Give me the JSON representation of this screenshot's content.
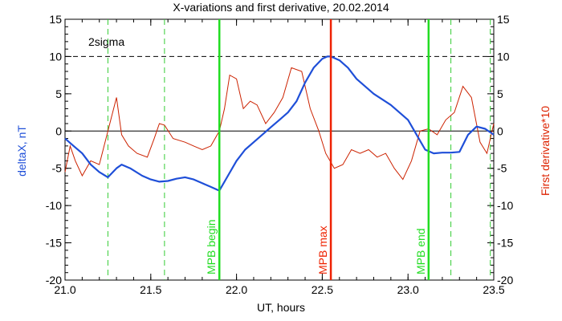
{
  "chart_data": {
    "type": "line",
    "title": "X-variations and first derivative, 20.02.2014",
    "xlabel": "UT, hours",
    "ylabel_left": "deltaX, nT",
    "ylabel_right": "First derivative*10",
    "xlim": [
      21.0,
      23.5
    ],
    "ylim_left": [
      -20,
      15
    ],
    "ylim_right": [
      -20,
      15
    ],
    "x_ticks": [
      "21.0",
      "21.5",
      "22.0",
      "22.5",
      "23.0",
      "23.5"
    ],
    "y_ticks": [
      "-20",
      "-15",
      "-10",
      "-5",
      "0",
      "5",
      "10",
      "15"
    ],
    "two_sigma_label": "2sigma",
    "two_sigma_level": 10,
    "zero_level": 0,
    "colors": {
      "deltaX": "#1f4fd8",
      "derivative": "#cc2200",
      "mpb_marker": "#22dd22",
      "max_marker": "#ee2200",
      "reference": "#000000",
      "dashed": "#33cc33"
    },
    "series": [
      {
        "name": "deltaX, nT",
        "axis": "left",
        "x": [
          21.0,
          21.05,
          21.1,
          21.15,
          21.2,
          21.25,
          21.3,
          21.33,
          21.38,
          21.45,
          21.5,
          21.55,
          21.6,
          21.65,
          21.7,
          21.75,
          21.8,
          21.85,
          21.9,
          21.95,
          22.0,
          22.05,
          22.1,
          22.15,
          22.2,
          22.25,
          22.3,
          22.35,
          22.4,
          22.45,
          22.5,
          22.53,
          22.55,
          22.6,
          22.65,
          22.7,
          22.8,
          22.9,
          23.0,
          23.05,
          23.1,
          23.15,
          23.2,
          23.25,
          23.3,
          23.35,
          23.4,
          23.45,
          23.5
        ],
        "y": [
          -1.0,
          -2.0,
          -3.0,
          -4.5,
          -5.5,
          -6.2,
          -5.0,
          -4.5,
          -5.0,
          -6.0,
          -6.5,
          -6.8,
          -6.7,
          -6.4,
          -6.2,
          -6.5,
          -7.0,
          -7.5,
          -8.0,
          -6.0,
          -4.0,
          -2.5,
          -1.5,
          -0.5,
          0.5,
          1.5,
          2.5,
          4.0,
          6.5,
          8.5,
          9.7,
          10.0,
          10.0,
          9.5,
          8.5,
          7.0,
          5.0,
          3.5,
          1.5,
          -0.5,
          -2.5,
          -3.0,
          -2.9,
          -2.9,
          -2.8,
          -0.5,
          0.6,
          0.3,
          -0.5
        ]
      },
      {
        "name": "First derivative*10",
        "axis": "right",
        "x": [
          21.0,
          21.03,
          21.06,
          21.1,
          21.15,
          21.2,
          21.25,
          21.3,
          21.33,
          21.37,
          21.42,
          21.48,
          21.52,
          21.55,
          21.58,
          21.63,
          21.7,
          21.75,
          21.8,
          21.85,
          21.9,
          21.93,
          21.96,
          22.0,
          22.04,
          22.08,
          22.12,
          22.17,
          22.22,
          22.27,
          22.32,
          22.38,
          22.43,
          22.48,
          22.52,
          22.57,
          22.62,
          22.67,
          22.72,
          22.77,
          22.82,
          22.87,
          22.92,
          22.97,
          23.02,
          23.07,
          23.12,
          23.17,
          23.22,
          23.27,
          23.32,
          23.37,
          23.42,
          23.46,
          23.5
        ],
        "y": [
          -5.5,
          -2.0,
          -4.0,
          -6.0,
          -4.0,
          -4.5,
          0.0,
          4.5,
          -0.5,
          -2.0,
          -3.0,
          -3.5,
          -1.0,
          1.0,
          0.8,
          -1.0,
          -1.5,
          -2.0,
          -2.5,
          -2.0,
          0.0,
          3.0,
          7.5,
          7.0,
          3.0,
          4.0,
          3.5,
          1.0,
          2.5,
          4.5,
          8.5,
          8.0,
          3.0,
          0.0,
          -3.0,
          -5.0,
          -4.5,
          -2.5,
          -3.0,
          -2.5,
          -3.5,
          -3.0,
          -5.0,
          -6.5,
          -4.0,
          0.0,
          0.3,
          -0.5,
          1.5,
          2.5,
          6.0,
          4.5,
          -1.5,
          -3.0,
          1.0
        ]
      }
    ],
    "vertical_markers": [
      {
        "x": 21.9,
        "label": "MPB begin",
        "style": "solid",
        "color": "#22dd22"
      },
      {
        "x": 22.55,
        "label": "MPB max",
        "style": "solid",
        "color": "#ee2200"
      },
      {
        "x": 23.12,
        "label": "MPB end",
        "style": "solid",
        "color": "#22dd22"
      }
    ],
    "dashed_markers": [
      21.25,
      21.58,
      23.25,
      23.48
    ],
    "grid": false
  }
}
